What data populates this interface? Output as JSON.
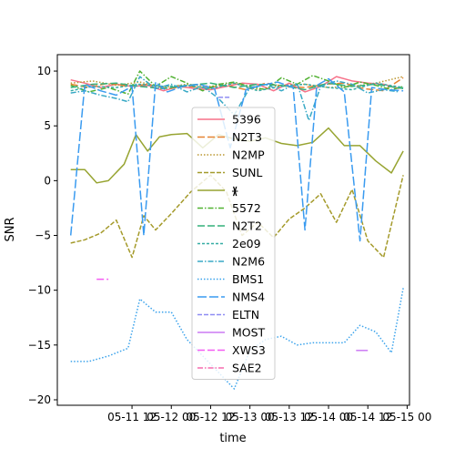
{
  "chart_data": {
    "type": "line",
    "title": "",
    "xlabel": "time",
    "ylabel": "SNR",
    "x_range_days": [
      10.55,
      15.03
    ],
    "ylim": [
      -20.5,
      11.5
    ],
    "x_ticks": [
      {
        "label": "05-11 12",
        "day": 11.5
      },
      {
        "label": "05-12 00",
        "day": 12.0
      },
      {
        "label": "05-12 12",
        "day": 12.5
      },
      {
        "label": "05-13 00",
        "day": 13.0
      },
      {
        "label": "05-13 12",
        "day": 13.5
      },
      {
        "label": "05-14 00",
        "day": 14.0
      },
      {
        "label": "05-14 12",
        "day": 14.5
      },
      {
        "label": "05-15 00",
        "day": 15.0
      }
    ],
    "y_ticks": [
      {
        "label": "10",
        "value": 10
      },
      {
        "label": "5",
        "value": 5
      },
      {
        "label": "0",
        "value": 0
      },
      {
        "label": "−5",
        "value": -5
      },
      {
        "label": "−10",
        "value": -10
      },
      {
        "label": "−15",
        "value": -15
      },
      {
        "label": "−20",
        "value": -20
      }
    ],
    "legend_position": "center",
    "series": [
      {
        "name": "5396",
        "color": "#f77189",
        "dash": "",
        "x": [
          10.72,
          10.9,
          11.1,
          11.3,
          11.5,
          11.7,
          11.9,
          12.1,
          12.3,
          12.5,
          12.7,
          12.9,
          13.1,
          13.3,
          13.5,
          13.7,
          13.9,
          14.1,
          14.3,
          14.5,
          14.7,
          14.9
        ],
        "y": [
          9.2,
          8.9,
          8.5,
          8.8,
          8.6,
          8.7,
          8.2,
          8.6,
          8.4,
          8.3,
          8.6,
          8.9,
          8.8,
          8.2,
          8.9,
          8.1,
          8.6,
          9.5,
          9.1,
          8.9,
          8.8,
          8.4
        ]
      },
      {
        "name": "N2T3",
        "color": "#e68332",
        "dash": "8,3",
        "x": [
          10.72,
          10.95,
          11.2,
          11.45,
          11.7,
          11.95,
          12.2,
          12.45,
          12.7,
          12.95,
          13.2,
          13.45,
          13.7,
          13.95,
          14.2,
          14.45,
          14.7,
          14.95
        ],
        "y": [
          8.8,
          8.5,
          8.9,
          8.6,
          8.8,
          8.4,
          8.6,
          8.5,
          8.7,
          8.3,
          8.9,
          8.6,
          8.5,
          8.8,
          8.9,
          8.4,
          8.2,
          9.4
        ]
      },
      {
        "name": "N2MP",
        "color": "#bb9832",
        "dash": "1.5,2",
        "x": [
          10.72,
          11.0,
          11.3,
          11.6,
          11.9,
          12.2,
          12.5,
          12.8,
          13.1,
          13.4,
          13.7,
          14.0,
          14.3,
          14.6,
          14.95
        ],
        "y": [
          8.9,
          9.1,
          8.7,
          9.0,
          8.5,
          8.8,
          8.6,
          8.9,
          8.3,
          8.7,
          8.8,
          8.5,
          8.6,
          8.9,
          9.5
        ]
      },
      {
        "name": "SUNL",
        "color": "#a49a2a",
        "dash": "5,2",
        "x": [
          10.72,
          10.9,
          11.1,
          11.3,
          11.5,
          11.65,
          11.8,
          12.0,
          12.25,
          12.5,
          12.7,
          12.9,
          13.1,
          13.3,
          13.5,
          13.7,
          13.9,
          14.1,
          14.3,
          14.5,
          14.7,
          14.95
        ],
        "y": [
          -5.7,
          -5.4,
          -4.8,
          -3.6,
          -7.0,
          -3.2,
          -4.5,
          -3.0,
          -1.0,
          0.5,
          -1.0,
          -5.0,
          -3.8,
          -5.2,
          -3.5,
          -2.5,
          -1.2,
          -3.8,
          -0.8,
          -5.5,
          -7.0,
          0.5
        ]
      },
      {
        "name": "ᚕ",
        "color": "#97a431",
        "dash": "",
        "x": [
          10.72,
          10.9,
          11.05,
          11.2,
          11.4,
          11.55,
          11.7,
          11.85,
          12.0,
          12.2,
          12.4,
          12.6,
          12.8,
          13.0,
          13.2,
          13.4,
          13.6,
          13.8,
          14.0,
          14.2,
          14.4,
          14.6,
          14.8,
          14.95
        ],
        "y": [
          1.0,
          1.0,
          -0.2,
          0.0,
          1.5,
          4.2,
          2.7,
          4.0,
          4.2,
          4.3,
          3.0,
          4.2,
          3.8,
          3.6,
          3.9,
          3.4,
          3.2,
          3.5,
          4.8,
          3.2,
          3.2,
          1.8,
          0.7,
          2.7
        ]
      },
      {
        "name": "5572",
        "color": "#50b131",
        "dash": "6,2,1.5,2",
        "x": [
          10.72,
          10.95,
          11.2,
          11.45,
          11.6,
          11.8,
          12.0,
          12.2,
          12.4,
          12.6,
          12.8,
          13.0,
          13.2,
          13.4,
          13.6,
          13.8,
          14.0,
          14.2,
          14.4,
          14.6,
          14.8,
          14.95
        ],
        "y": [
          8.7,
          8.1,
          8.5,
          7.9,
          10.0,
          8.6,
          9.5,
          8.9,
          8.2,
          8.8,
          9.0,
          8.6,
          8.3,
          9.4,
          8.8,
          9.6,
          9.1,
          8.5,
          9.0,
          8.7,
          8.3,
          8.6
        ]
      },
      {
        "name": "N2T2",
        "color": "#33b07a",
        "dash": "8,3",
        "x": [
          10.72,
          11.0,
          11.3,
          11.6,
          11.9,
          12.2,
          12.5,
          12.8,
          13.1,
          13.4,
          13.7,
          14.0,
          14.3,
          14.6,
          14.95
        ],
        "y": [
          8.5,
          8.8,
          8.9,
          8.6,
          8.4,
          8.7,
          8.9,
          8.5,
          8.8,
          8.7,
          8.3,
          8.9,
          8.6,
          8.8,
          8.4
        ]
      },
      {
        "name": "2e09",
        "color": "#35aca4",
        "dash": "3,2",
        "x": [
          10.72,
          11.0,
          11.3,
          11.6,
          11.9,
          12.2,
          12.5,
          12.8,
          13.1,
          13.4,
          13.7,
          14.0,
          14.3,
          14.6,
          14.95
        ],
        "y": [
          8.2,
          8.6,
          8.5,
          8.8,
          8.6,
          8.7,
          8.4,
          8.9,
          8.2,
          8.6,
          8.8,
          8.5,
          8.3,
          8.9,
          8.5
        ]
      },
      {
        "name": "N2M6",
        "color": "#38a9c5",
        "dash": "6,2,1.5,2",
        "x": [
          10.72,
          10.9,
          11.1,
          11.3,
          11.45,
          11.6,
          11.8,
          12.0,
          12.2,
          12.4,
          12.6,
          12.8,
          13.0,
          13.2,
          13.4,
          13.6,
          13.75,
          13.9,
          14.1,
          14.3,
          14.5,
          14.7,
          14.9
        ],
        "y": [
          8.0,
          8.2,
          7.8,
          7.5,
          7.2,
          9.5,
          8.4,
          8.8,
          8.1,
          8.6,
          7.5,
          6.0,
          8.5,
          8.8,
          8.2,
          8.9,
          5.5,
          8.6,
          9.1,
          8.8,
          8.0,
          8.3,
          8.1
        ]
      },
      {
        "name": "BMS1",
        "color": "#3ba3ec",
        "dash": "1.5,2",
        "x": [
          10.72,
          10.95,
          11.2,
          11.45,
          11.6,
          11.8,
          12.0,
          12.2,
          12.4,
          12.6,
          12.8,
          13.0,
          13.2,
          13.4,
          13.6,
          13.8,
          14.0,
          14.2,
          14.4,
          14.6,
          14.8,
          14.95
        ],
        "y": [
          -16.5,
          -16.5,
          -16.0,
          -15.3,
          -10.8,
          -12.0,
          -12.0,
          -14.5,
          -16.0,
          -17.5,
          -19.0,
          -15.5,
          -14.5,
          -14.2,
          -15.0,
          -14.8,
          -14.8,
          -14.8,
          -13.2,
          -13.8,
          -15.7,
          -9.8
        ]
      },
      {
        "name": "NMS4",
        "color": "#3a9bf0",
        "dash": "10,3",
        "x": [
          10.72,
          10.9,
          11.1,
          11.3,
          11.5,
          11.65,
          11.8,
          11.95,
          12.15,
          12.35,
          12.55,
          12.75,
          12.95,
          13.15,
          13.35,
          13.55,
          13.7,
          13.85,
          14.0,
          14.2,
          14.4,
          14.55,
          14.75,
          14.95
        ],
        "y": [
          -5.0,
          8.8,
          8.2,
          7.8,
          8.6,
          -5.0,
          9.0,
          8.1,
          8.6,
          8.8,
          8.4,
          3.0,
          8.3,
          8.7,
          9.0,
          8.5,
          -4.5,
          8.7,
          9.3,
          8.1,
          -5.5,
          8.5,
          8.3,
          8.2
        ]
      },
      {
        "name": "ELTN",
        "color": "#8e8cf3",
        "dash": "5,2",
        "x": [
          12.6,
          12.75
        ],
        "y": [
          7.6,
          7.6
        ]
      },
      {
        "name": "MOST",
        "color": "#cc7af4",
        "dash": "",
        "x": [
          14.35,
          14.5
        ],
        "y": [
          -15.5,
          -15.5
        ]
      },
      {
        "name": "XWS3",
        "color": "#f45cf2",
        "dash": "8,3",
        "x": [
          11.05,
          11.2
        ],
        "y": [
          -9.0,
          -9.0
        ]
      },
      {
        "name": "SAE2",
        "color": "#f66bad",
        "dash": "6,2,1.5,2",
        "x": [],
        "y": []
      }
    ]
  }
}
